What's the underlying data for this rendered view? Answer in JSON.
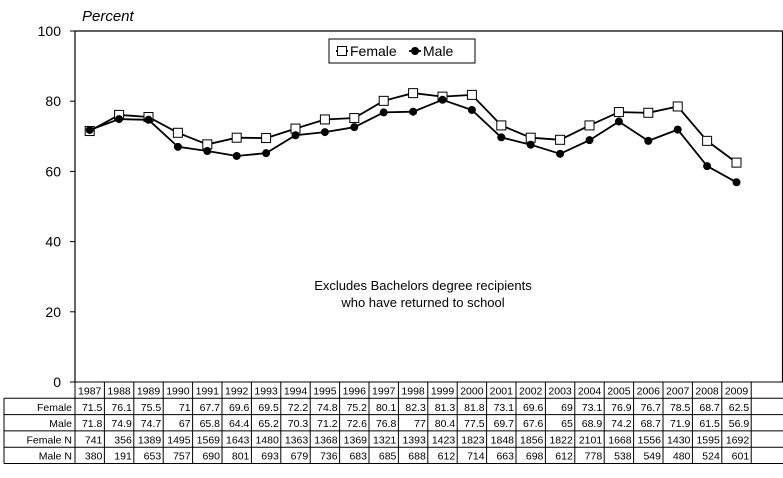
{
  "chart_data": {
    "type": "line",
    "ylabel": "Percent",
    "ylim": [
      0,
      100
    ],
    "yticks": [
      0,
      20,
      40,
      60,
      80,
      100
    ],
    "grid": false,
    "legend_position": "top-center",
    "note_lines": [
      "Excludes Bachelors degree recipients",
      "who have returned to school"
    ],
    "categories": [
      "1987",
      "1988",
      "1989",
      "1990",
      "1991",
      "1992",
      "1993",
      "1994",
      "1995",
      "1996",
      "1997",
      "1998",
      "1999",
      "2000",
      "2001",
      "2002",
      "2003",
      "2004",
      "2005",
      "2006",
      "2007",
      "2008",
      "2009"
    ],
    "series": [
      {
        "name": "Female",
        "marker": "open-square",
        "values": [
          71.5,
          76.1,
          75.5,
          71,
          67.7,
          69.6,
          69.5,
          72.2,
          74.8,
          75.2,
          80.1,
          82.3,
          81.3,
          81.8,
          73.1,
          69.6,
          69,
          73.1,
          76.9,
          76.7,
          78.5,
          68.7,
          62.5
        ]
      },
      {
        "name": "Male",
        "marker": "filled-circle",
        "values": [
          71.8,
          74.9,
          74.7,
          67,
          65.8,
          64.4,
          65.2,
          70.3,
          71.2,
          72.6,
          76.8,
          77,
          80.4,
          77.5,
          69.7,
          67.6,
          65,
          68.9,
          74.2,
          68.7,
          71.9,
          61.5,
          56.9
        ]
      }
    ],
    "table": {
      "rows": [
        {
          "label": "Female",
          "cells": [
            "71.5",
            "76.1",
            "75.5",
            "71",
            "67.7",
            "69.6",
            "69.5",
            "72.2",
            "74.8",
            "75.2",
            "80.1",
            "82.3",
            "81.3",
            "81.8",
            "73.1",
            "69.6",
            "69",
            "73.1",
            "76.9",
            "76.7",
            "78.5",
            "68.7",
            "62.5"
          ]
        },
        {
          "label": "Male",
          "cells": [
            "71.8",
            "74.9",
            "74.7",
            "67",
            "65.8",
            "64.4",
            "65.2",
            "70.3",
            "71.2",
            "72.6",
            "76.8",
            "77",
            "80.4",
            "77.5",
            "69.7",
            "67.6",
            "65",
            "68.9",
            "74.2",
            "68.7",
            "71.9",
            "61.5",
            "56.9"
          ]
        },
        {
          "label": "Female N",
          "cells": [
            "741",
            "356",
            "1389",
            "1495",
            "1569",
            "1643",
            "1480",
            "1363",
            "1368",
            "1369",
            "1321",
            "1393",
            "1423",
            "1823",
            "1848",
            "1856",
            "1822",
            "2101",
            "1668",
            "1556",
            "1430",
            "1595",
            "1692"
          ]
        },
        {
          "label": "Male N",
          "cells": [
            "380",
            "191",
            "653",
            "757",
            "690",
            "801",
            "693",
            "679",
            "736",
            "683",
            "685",
            "688",
            "612",
            "714",
            "663",
            "698",
            "612",
            "778",
            "538",
            "549",
            "480",
            "524",
            "601"
          ]
        }
      ]
    }
  }
}
